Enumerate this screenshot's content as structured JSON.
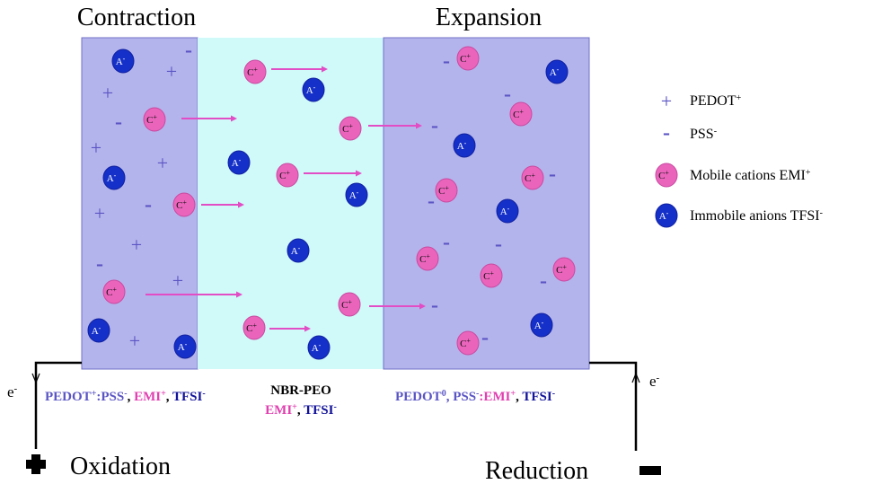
{
  "titles": {
    "left": "Contraction",
    "right": "Expansion"
  },
  "symbols": {
    "plus": "+",
    "minus": "-"
  },
  "ion_labels": {
    "anion": {
      "text": "A",
      "sup": "-"
    },
    "cation": {
      "text": "C",
      "sup": "+"
    }
  },
  "legend": [
    {
      "text": "PEDOT",
      "sup": "+"
    },
    {
      "text": "PSS",
      "sup": "-"
    },
    {
      "text": "Mobile cations EMI",
      "sup": "+"
    },
    {
      "text": "Immobile anions TFSI",
      "sup": "-"
    }
  ],
  "labels": {
    "left_electrode": [
      {
        "text": "PEDOT",
        "sup": "+",
        "color": "#5b55c4"
      },
      {
        "text": ":PSS",
        "sup": "-",
        "color": "#5b55c4"
      },
      {
        "text": ", ",
        "color": "#000000"
      },
      {
        "text": "EMI",
        "sup": "+",
        "color": "#e040b0"
      },
      {
        "text": ", ",
        "color": "#000000"
      },
      {
        "text": "TFSI",
        "sup": "-",
        "color": "#12129a"
      }
    ],
    "electrolyte_name": "NBR-PEO",
    "electrolyte_ions": [
      {
        "text": "EMI",
        "sup": "+",
        "color": "#e040b0"
      },
      {
        "text": ", ",
        "color": "#000000"
      },
      {
        "text": "TFSI",
        "sup": "-",
        "color": "#12129a"
      }
    ],
    "right_electrode": [
      {
        "text": "PEDOT",
        "sup": "0",
        "color": "#5b55c4"
      },
      {
        "text": ", PSS",
        "sup": "-",
        "color": "#5b55c4"
      },
      {
        "text": ":EMI",
        "sup": "+",
        "color": "#e040b0"
      },
      {
        "text": ", ",
        "color": "#000000"
      },
      {
        "text": "TFSI",
        "sup": "-",
        "color": "#12129a"
      }
    ]
  },
  "electron": {
    "text": "e",
    "sup": "-"
  },
  "poles": {
    "oxidation": "Oxidation",
    "reduction": "Reduction"
  }
}
